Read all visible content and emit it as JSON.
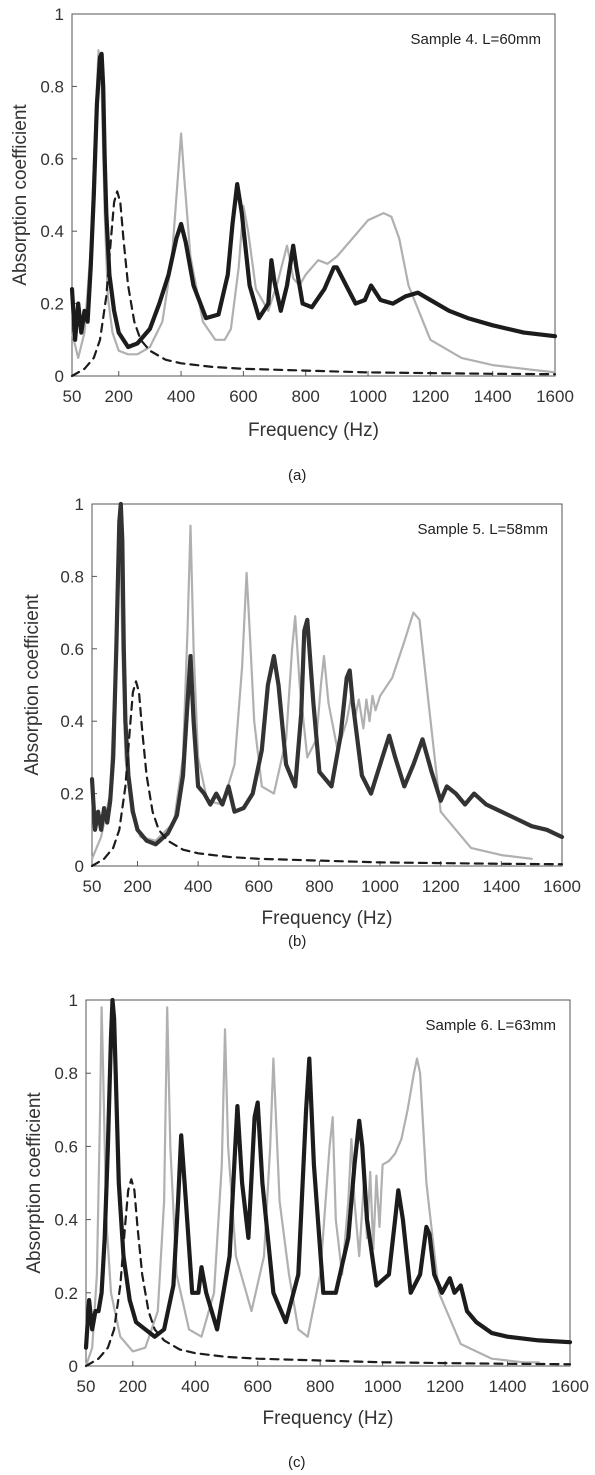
{
  "chart_data": [
    {
      "type": "line",
      "panel": "a",
      "caption": "(a)",
      "annotation": "Sample 4. L=60mm",
      "xlabel": "Frequency (Hz)",
      "ylabel": "Absorption coefficient",
      "xlim": [
        50,
        1600
      ],
      "ylim": [
        0,
        1
      ],
      "xticks": [
        "50",
        "200",
        "400",
        "600",
        "800",
        "1000",
        "1200",
        "1400",
        "1600"
      ],
      "yticks": [
        "0",
        "0.2",
        "0.4",
        "0.6",
        "0.8",
        "1"
      ],
      "grid": false,
      "series": [
        {
          "style": "gray-solid",
          "color": "#b0b0b0",
          "x": [
            50,
            70,
            90,
            110,
            125,
            135,
            145,
            155,
            165,
            180,
            200,
            230,
            260,
            300,
            340,
            370,
            390,
            400,
            410,
            430,
            470,
            510,
            540,
            560,
            585,
            600,
            615,
            640,
            680,
            710,
            740,
            750,
            760,
            780,
            800,
            840,
            870,
            900,
            950,
            1000,
            1050,
            1075,
            1100,
            1130,
            1200,
            1300,
            1400,
            1500,
            1600
          ],
          "y": [
            0.12,
            0.05,
            0.12,
            0.35,
            0.7,
            0.9,
            0.8,
            0.45,
            0.22,
            0.12,
            0.07,
            0.06,
            0.06,
            0.08,
            0.15,
            0.32,
            0.55,
            0.67,
            0.55,
            0.33,
            0.15,
            0.1,
            0.1,
            0.13,
            0.3,
            0.47,
            0.4,
            0.24,
            0.18,
            0.26,
            0.36,
            0.32,
            0.27,
            0.25,
            0.28,
            0.32,
            0.31,
            0.33,
            0.38,
            0.43,
            0.45,
            0.44,
            0.38,
            0.25,
            0.1,
            0.05,
            0.03,
            0.02,
            0.01
          ]
        },
        {
          "style": "black-dotted-thick",
          "color": "#1c1c1c",
          "x": [
            50,
            60,
            70,
            80,
            90,
            100,
            110,
            120,
            130,
            140,
            145,
            150,
            155,
            160,
            170,
            185,
            200,
            230,
            260,
            300,
            330,
            360,
            385,
            400,
            415,
            440,
            480,
            520,
            550,
            565,
            580,
            595,
            620,
            650,
            680,
            690,
            700,
            720,
            740,
            760,
            770,
            790,
            820,
            860,
            890,
            900,
            930,
            960,
            990,
            1010,
            1040,
            1080,
            1120,
            1160,
            1200,
            1260,
            1320,
            1400,
            1500,
            1600
          ],
          "y": [
            0.24,
            0.1,
            0.2,
            0.12,
            0.18,
            0.15,
            0.3,
            0.5,
            0.75,
            0.88,
            0.89,
            0.8,
            0.6,
            0.45,
            0.28,
            0.18,
            0.12,
            0.08,
            0.09,
            0.13,
            0.2,
            0.28,
            0.38,
            0.42,
            0.37,
            0.25,
            0.16,
            0.17,
            0.28,
            0.42,
            0.53,
            0.45,
            0.25,
            0.16,
            0.2,
            0.32,
            0.26,
            0.18,
            0.25,
            0.36,
            0.3,
            0.2,
            0.19,
            0.24,
            0.3,
            0.3,
            0.25,
            0.2,
            0.21,
            0.25,
            0.21,
            0.2,
            0.22,
            0.23,
            0.21,
            0.18,
            0.16,
            0.14,
            0.12,
            0.11
          ]
        },
        {
          "style": "black-dashed",
          "color": "#1c1c1c",
          "x": [
            50,
            90,
            120,
            140,
            160,
            175,
            185,
            195,
            205,
            215,
            230,
            250,
            270,
            300,
            350,
            400,
            500,
            600,
            800,
            1000,
            1200,
            1400,
            1600
          ],
          "y": [
            0.0,
            0.02,
            0.05,
            0.1,
            0.22,
            0.38,
            0.48,
            0.51,
            0.48,
            0.38,
            0.25,
            0.15,
            0.1,
            0.07,
            0.045,
            0.035,
            0.025,
            0.02,
            0.015,
            0.01,
            0.008,
            0.006,
            0.005
          ]
        }
      ]
    },
    {
      "type": "line",
      "panel": "b",
      "caption": "(b)",
      "annotation": "Sample 5. L=58mm",
      "xlabel": "Frequency (Hz)",
      "ylabel": "Absorption coefficient",
      "xlim": [
        50,
        1600
      ],
      "ylim": [
        0,
        1
      ],
      "xticks": [
        "50",
        "200",
        "400",
        "600",
        "800",
        "1000",
        "1200",
        "1400",
        "1600"
      ],
      "yticks": [
        "0",
        "0.2",
        "0.4",
        "0.6",
        "0.8",
        "1"
      ],
      "grid": false,
      "series": [
        {
          "style": "gray-solid",
          "color": "#b0b0b0",
          "x": [
            50,
            80,
            110,
            125,
            135,
            140,
            145,
            150,
            160,
            180,
            210,
            260,
            320,
            350,
            365,
            375,
            385,
            400,
            430,
            480,
            520,
            545,
            560,
            570,
            585,
            610,
            650,
            690,
            710,
            720,
            735,
            760,
            790,
            805,
            815,
            830,
            860,
            890,
            905,
            915,
            930,
            945,
            955,
            965,
            975,
            985,
            1000,
            1040,
            1080,
            1110,
            1130,
            1160,
            1200,
            1300,
            1400,
            1500
          ],
          "y": [
            0.02,
            0.08,
            0.2,
            0.5,
            0.85,
            0.98,
            0.85,
            0.6,
            0.3,
            0.15,
            0.08,
            0.07,
            0.12,
            0.3,
            0.65,
            0.94,
            0.6,
            0.3,
            0.18,
            0.17,
            0.28,
            0.55,
            0.81,
            0.65,
            0.4,
            0.22,
            0.2,
            0.35,
            0.6,
            0.69,
            0.5,
            0.3,
            0.35,
            0.5,
            0.58,
            0.45,
            0.32,
            0.4,
            0.47,
            0.4,
            0.46,
            0.38,
            0.46,
            0.4,
            0.47,
            0.43,
            0.47,
            0.52,
            0.62,
            0.7,
            0.68,
            0.45,
            0.15,
            0.05,
            0.03,
            0.02
          ]
        },
        {
          "style": "black-dotted-thick",
          "color": "#333333",
          "x": [
            50,
            60,
            70,
            80,
            90,
            100,
            110,
            120,
            130,
            140,
            145,
            150,
            155,
            160,
            170,
            185,
            200,
            230,
            260,
            300,
            330,
            350,
            365,
            375,
            385,
            400,
            420,
            440,
            460,
            480,
            500,
            520,
            550,
            580,
            610,
            630,
            650,
            665,
            690,
            720,
            740,
            750,
            760,
            780,
            800,
            840,
            870,
            890,
            900,
            910,
            940,
            970,
            1000,
            1030,
            1050,
            1080,
            1110,
            1140,
            1170,
            1200,
            1220,
            1250,
            1280,
            1310,
            1350,
            1400,
            1450,
            1500,
            1550,
            1600
          ],
          "y": [
            0.24,
            0.1,
            0.15,
            0.1,
            0.16,
            0.12,
            0.18,
            0.3,
            0.6,
            0.95,
            1.0,
            0.9,
            0.6,
            0.4,
            0.25,
            0.15,
            0.1,
            0.07,
            0.06,
            0.09,
            0.14,
            0.25,
            0.45,
            0.58,
            0.4,
            0.22,
            0.2,
            0.17,
            0.2,
            0.17,
            0.22,
            0.15,
            0.16,
            0.2,
            0.32,
            0.5,
            0.58,
            0.5,
            0.28,
            0.22,
            0.42,
            0.65,
            0.68,
            0.45,
            0.26,
            0.22,
            0.36,
            0.52,
            0.54,
            0.45,
            0.25,
            0.2,
            0.28,
            0.36,
            0.3,
            0.22,
            0.28,
            0.35,
            0.26,
            0.18,
            0.22,
            0.2,
            0.17,
            0.2,
            0.17,
            0.15,
            0.13,
            0.11,
            0.1,
            0.08
          ]
        },
        {
          "style": "black-dashed",
          "color": "#1c1c1c",
          "x": [
            50,
            90,
            120,
            140,
            160,
            175,
            185,
            195,
            205,
            215,
            230,
            250,
            270,
            300,
            350,
            400,
            500,
            600,
            800,
            1000,
            1200,
            1400,
            1600
          ],
          "y": [
            0.0,
            0.02,
            0.05,
            0.1,
            0.22,
            0.38,
            0.48,
            0.51,
            0.48,
            0.38,
            0.25,
            0.15,
            0.1,
            0.07,
            0.045,
            0.035,
            0.025,
            0.02,
            0.015,
            0.01,
            0.008,
            0.006,
            0.005
          ]
        }
      ]
    },
    {
      "type": "line",
      "panel": "c",
      "caption": "(c)",
      "annotation": "Sample 6. L=63mm",
      "xlabel": "Frequency (Hz)",
      "ylabel": "Absorption coefficient",
      "xlim": [
        50,
        1600
      ],
      "ylim": [
        0,
        1
      ],
      "xticks": [
        "50",
        "200",
        "400",
        "600",
        "800",
        "1000",
        "1200",
        "1400",
        "1600"
      ],
      "yticks": [
        "0",
        "0.2",
        "0.4",
        "0.6",
        "0.8",
        "1"
      ],
      "grid": false,
      "series": [
        {
          "style": "gray-solid",
          "color": "#b0b0b0",
          "x": [
            50,
            70,
            85,
            95,
            100,
            105,
            115,
            130,
            160,
            200,
            240,
            280,
            300,
            310,
            320,
            340,
            380,
            420,
            460,
            485,
            495,
            505,
            530,
            580,
            620,
            640,
            650,
            670,
            700,
            730,
            760,
            800,
            830,
            840,
            850,
            870,
            890,
            900,
            910,
            925,
            940,
            950,
            960,
            970,
            980,
            990,
            1000,
            1020,
            1040,
            1060,
            1080,
            1100,
            1110,
            1120,
            1140,
            1180,
            1250,
            1350,
            1450,
            1500
          ],
          "y": [
            0.0,
            0.05,
            0.25,
            0.7,
            0.98,
            0.8,
            0.4,
            0.2,
            0.08,
            0.04,
            0.05,
            0.15,
            0.45,
            0.98,
            0.6,
            0.25,
            0.1,
            0.08,
            0.2,
            0.55,
            0.92,
            0.6,
            0.3,
            0.15,
            0.3,
            0.6,
            0.84,
            0.45,
            0.25,
            0.1,
            0.08,
            0.25,
            0.6,
            0.68,
            0.4,
            0.25,
            0.45,
            0.62,
            0.45,
            0.3,
            0.5,
            0.35,
            0.53,
            0.32,
            0.52,
            0.38,
            0.55,
            0.56,
            0.58,
            0.62,
            0.7,
            0.8,
            0.84,
            0.8,
            0.5,
            0.2,
            0.06,
            0.02,
            0.01,
            0.01
          ]
        },
        {
          "style": "black-dotted-thick",
          "color": "#1c1c1c",
          "x": [
            50,
            60,
            70,
            80,
            90,
            100,
            110,
            120,
            130,
            135,
            140,
            145,
            155,
            170,
            190,
            210,
            240,
            270,
            300,
            330,
            345,
            355,
            370,
            390,
            410,
            420,
            435,
            470,
            510,
            525,
            535,
            550,
            570,
            590,
            600,
            615,
            650,
            690,
            730,
            755,
            765,
            780,
            810,
            850,
            890,
            910,
            925,
            935,
            950,
            980,
            1020,
            1040,
            1050,
            1065,
            1090,
            1120,
            1140,
            1150,
            1165,
            1190,
            1215,
            1230,
            1250,
            1270,
            1300,
            1350,
            1400,
            1500,
            1600
          ],
          "y": [
            0.05,
            0.18,
            0.1,
            0.15,
            0.15,
            0.2,
            0.35,
            0.6,
            0.9,
            1.0,
            0.95,
            0.8,
            0.5,
            0.3,
            0.18,
            0.12,
            0.1,
            0.08,
            0.1,
            0.22,
            0.45,
            0.63,
            0.45,
            0.2,
            0.2,
            0.27,
            0.2,
            0.1,
            0.3,
            0.55,
            0.71,
            0.5,
            0.35,
            0.68,
            0.72,
            0.5,
            0.2,
            0.12,
            0.25,
            0.7,
            0.84,
            0.55,
            0.2,
            0.2,
            0.35,
            0.55,
            0.67,
            0.6,
            0.4,
            0.22,
            0.25,
            0.4,
            0.48,
            0.4,
            0.2,
            0.25,
            0.38,
            0.36,
            0.25,
            0.2,
            0.24,
            0.2,
            0.22,
            0.15,
            0.12,
            0.09,
            0.08,
            0.07,
            0.065
          ]
        },
        {
          "style": "black-dashed",
          "color": "#1c1c1c",
          "x": [
            50,
            90,
            120,
            140,
            160,
            175,
            185,
            195,
            205,
            215,
            230,
            250,
            270,
            300,
            350,
            400,
            500,
            600,
            800,
            1000,
            1200,
            1400,
            1600
          ],
          "y": [
            0.0,
            0.02,
            0.05,
            0.1,
            0.22,
            0.38,
            0.48,
            0.51,
            0.48,
            0.38,
            0.25,
            0.15,
            0.1,
            0.07,
            0.045,
            0.035,
            0.025,
            0.02,
            0.015,
            0.01,
            0.008,
            0.006,
            0.005
          ]
        }
      ]
    }
  ]
}
